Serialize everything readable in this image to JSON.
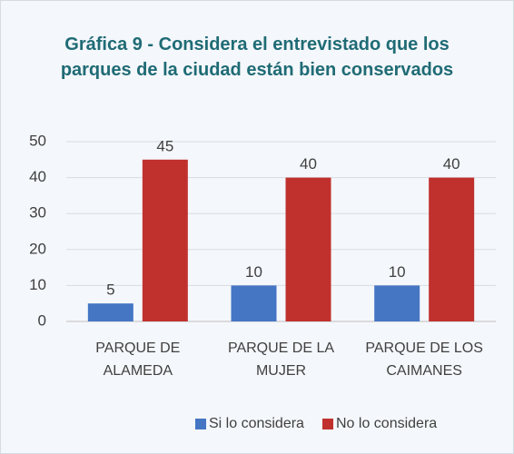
{
  "chart_data": {
    "type": "bar",
    "title": "Gráfica 9 - Considera el entrevistado que los parques de la ciudad están bien conservados",
    "categories": [
      "PARQUE DE ALAMEDA",
      "PARQUE DE LA MUJER",
      "PARQUE DE LOS CAIMANES"
    ],
    "series": [
      {
        "name": "Si lo considera",
        "color": "#4576c4",
        "values": [
          5,
          10,
          10
        ]
      },
      {
        "name": "No lo considera",
        "color": "#c0312e",
        "values": [
          45,
          40,
          40
        ]
      }
    ],
    "ylim": [
      0,
      50
    ],
    "yticks": [
      0,
      10,
      20,
      30,
      40,
      50
    ],
    "grid": true,
    "legend": "bottom"
  }
}
